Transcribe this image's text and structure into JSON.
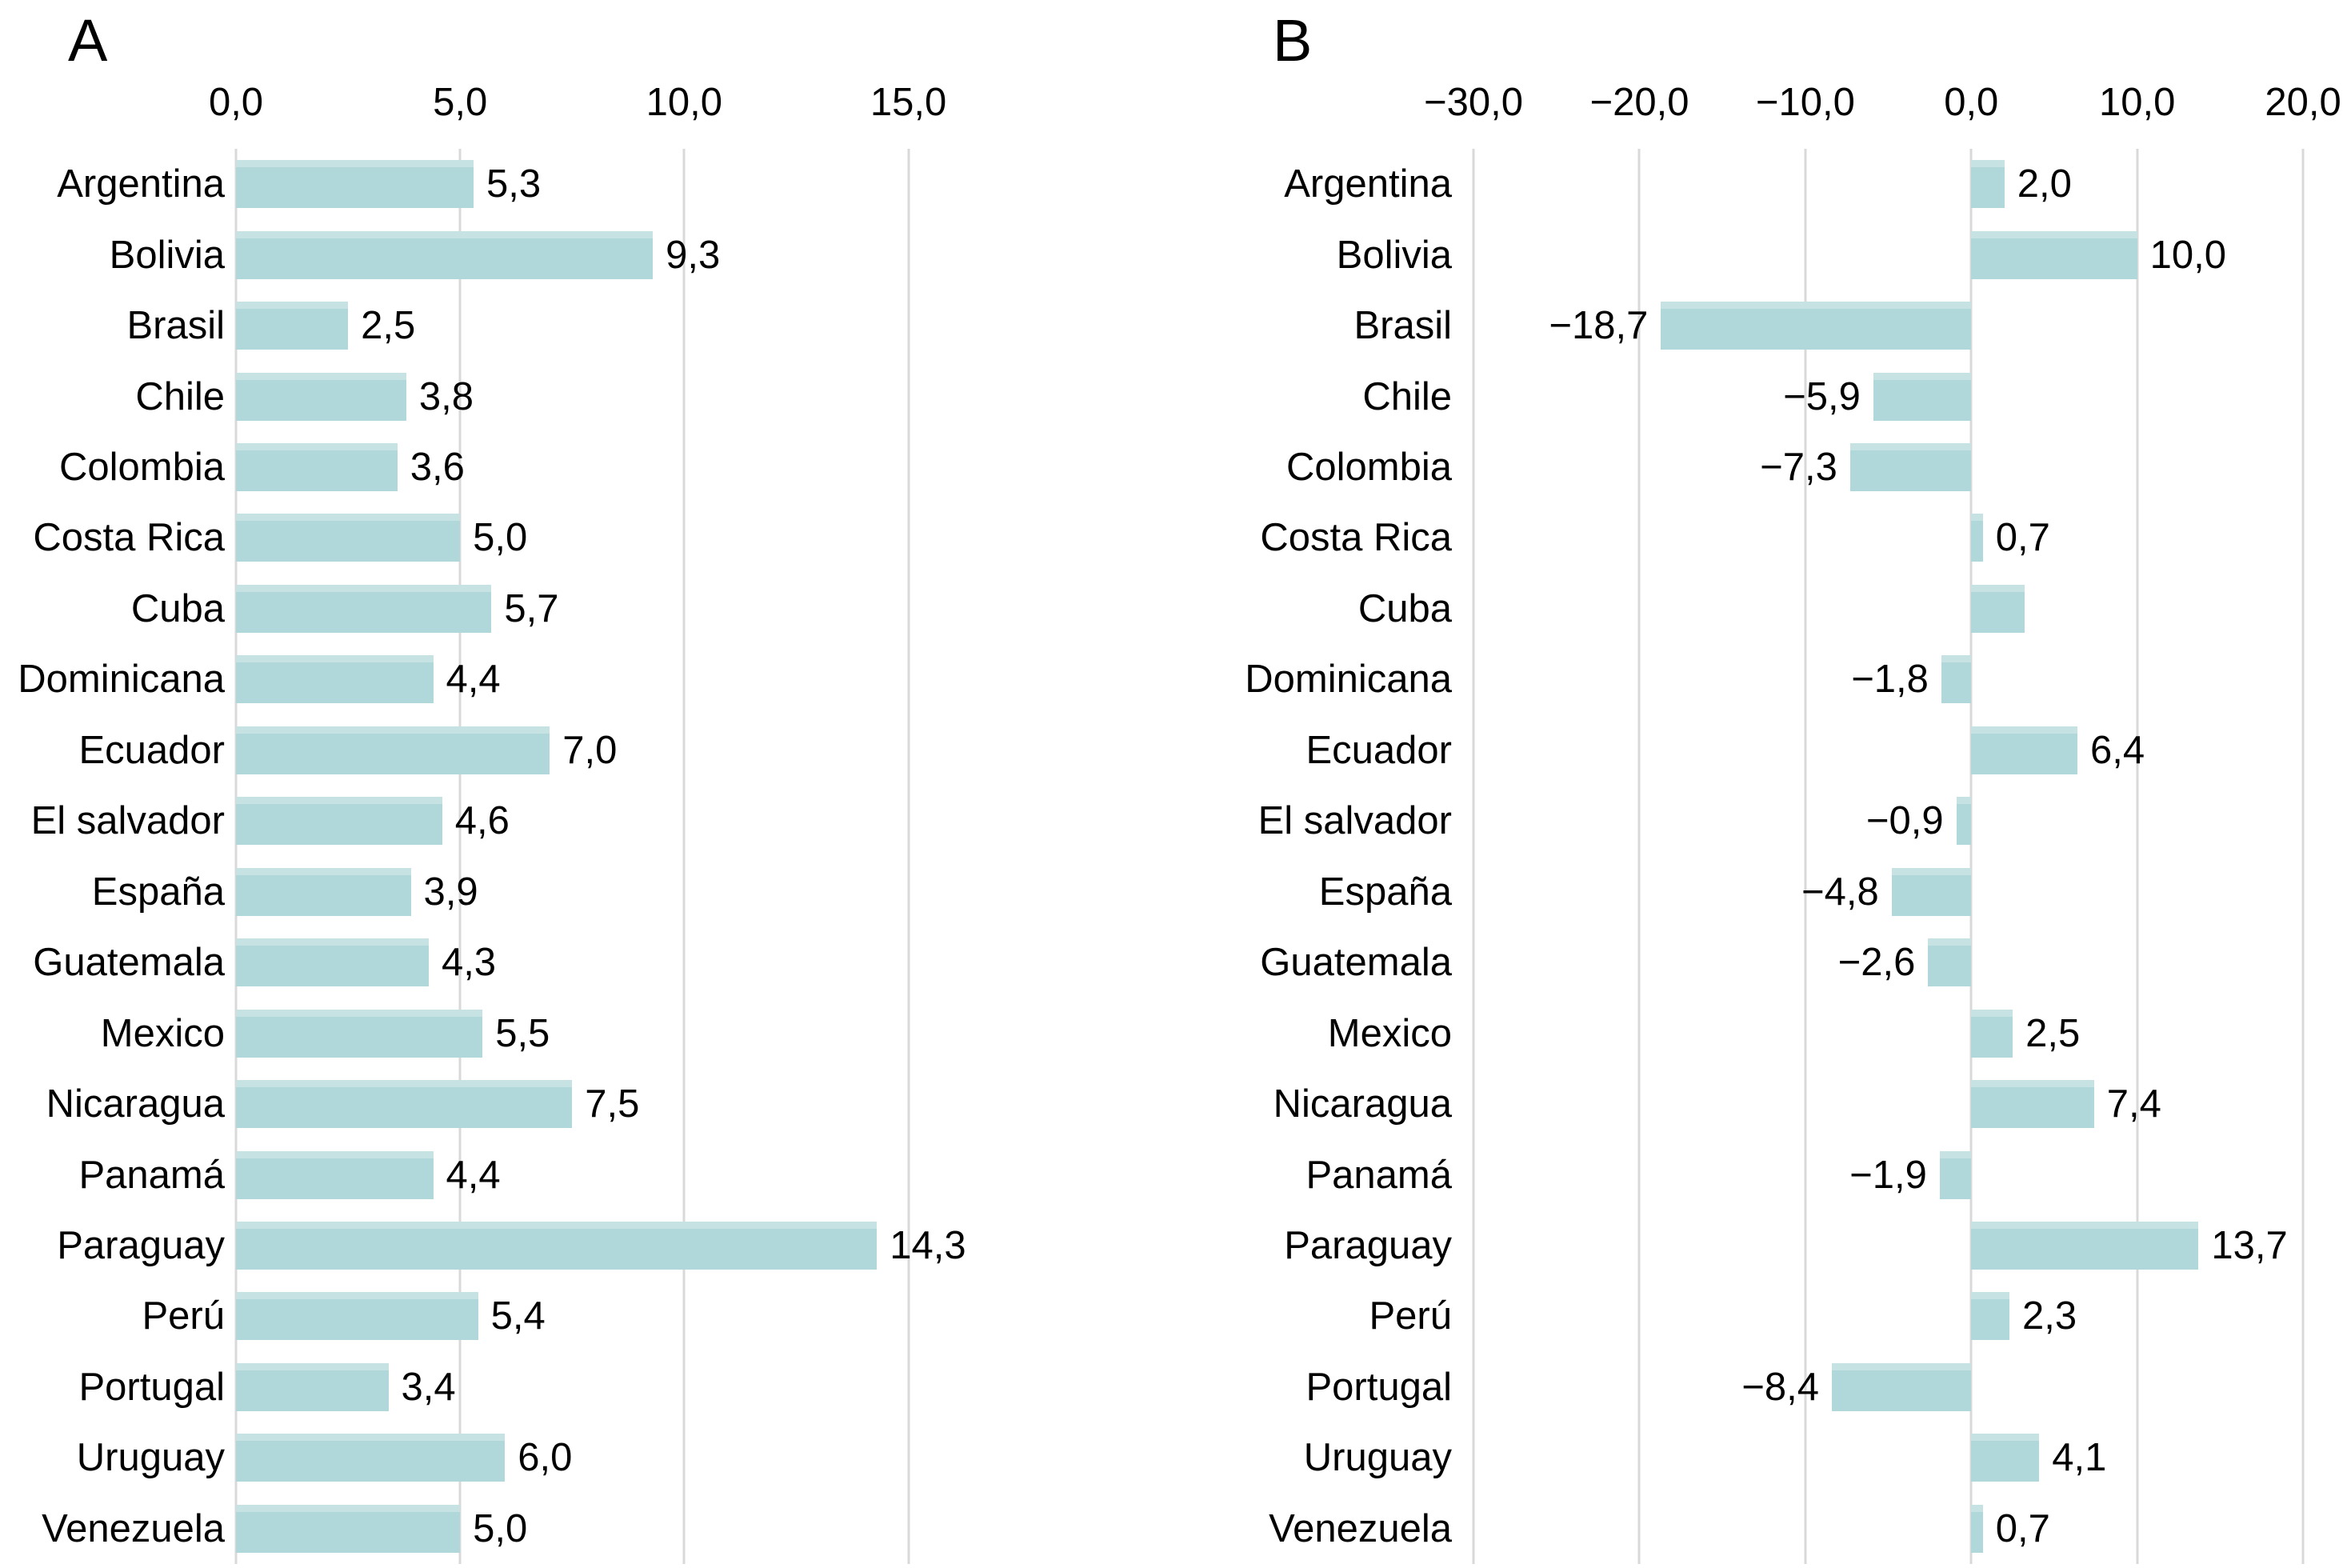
{
  "figure": {
    "bar_color": "#b0d7d9",
    "gridline_color": "#d9d9d9",
    "text_color": "#000000"
  },
  "chart_data": [
    {
      "type": "bar",
      "orientation": "horizontal",
      "panel": "A",
      "title": "",
      "xlabel": "",
      "ylabel": "",
      "legend": null,
      "grid": true,
      "xlim": [
        0,
        16.9
      ],
      "xticks": [
        0,
        5,
        10,
        15
      ],
      "xtick_labels": [
        "0,0",
        "5,0",
        "10,0",
        "15,0"
      ],
      "categories": [
        "Argentina",
        "Bolivia",
        "Brasil",
        "Chile",
        "Colombia",
        "Costa Rica",
        "Cuba",
        "Dominicana",
        "Ecuador",
        "El salvador",
        "España",
        "Guatemala",
        "Mexico",
        "Nicaragua",
        "Panamá",
        "Paraguay",
        "Perú",
        "Portugal",
        "Uruguay",
        "Venezuela"
      ],
      "values": [
        5.3,
        9.3,
        2.5,
        3.8,
        3.6,
        5.0,
        5.7,
        4.4,
        7.0,
        4.6,
        3.9,
        4.3,
        5.5,
        7.5,
        4.4,
        14.3,
        5.4,
        3.4,
        6.0,
        5.0
      ],
      "value_labels": [
        "5,3",
        "9,3",
        "2,5",
        "3,8",
        "3,6",
        "5,0",
        "5,7",
        "4,4",
        "7,0",
        "4,6",
        "3,9",
        "4,3",
        "5,5",
        "7,5",
        "4,4",
        "14,3",
        "5,4",
        "3,4",
        "6,0",
        "5,0"
      ]
    },
    {
      "type": "bar",
      "orientation": "horizontal",
      "panel": "B",
      "title": "",
      "xlabel": "",
      "ylabel": "",
      "legend": null,
      "grid": true,
      "xlim": [
        -30.34,
        20.19
      ],
      "xticks": [
        -30,
        -20,
        -10,
        0,
        10,
        20
      ],
      "xtick_labels": [
        "−30,0",
        "−20,0",
        "−10,0",
        "0,0",
        "10,0",
        "20,0"
      ],
      "categories": [
        "Argentina",
        "Bolivia",
        "Brasil",
        "Chile",
        "Colombia",
        "Costa Rica",
        "Cuba",
        "Dominicana",
        "Ecuador",
        "El salvador",
        "España",
        "Guatemala",
        "Mexico",
        "Nicaragua",
        "Panamá",
        "Paraguay",
        "Perú",
        "Portugal",
        "Uruguay",
        "Venezuela"
      ],
      "values": [
        2.0,
        10.0,
        -18.7,
        -5.9,
        -7.3,
        0.7,
        3.2,
        -1.8,
        6.4,
        -0.9,
        -4.8,
        -2.6,
        2.5,
        7.4,
        -1.9,
        13.7,
        2.3,
        -8.4,
        4.1,
        0.7
      ],
      "value_labels": [
        "2,0",
        "10,0",
        "−18,7",
        "−5,9",
        "−7,3",
        "0,7",
        "",
        "−1,8",
        "6,4",
        "−0,9",
        "−4,8",
        "−2,6",
        "2,5",
        "7,4",
        "−1,9",
        "13,7",
        "2,3",
        "−8,4",
        "4,1",
        "0,7"
      ]
    }
  ]
}
